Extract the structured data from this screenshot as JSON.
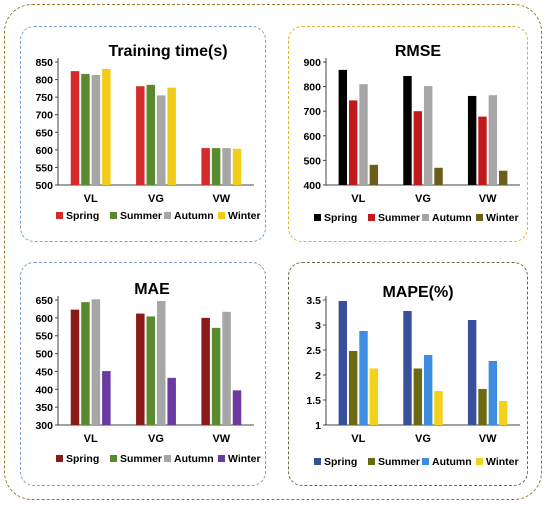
{
  "chart_data": [
    {
      "type": "bar",
      "title": "Training time(s)",
      "xlabel": "",
      "ylabel": "",
      "categories": [
        "VL",
        "VG",
        "VW"
      ],
      "ylim": [
        500,
        850
      ],
      "yticks": [
        500,
        550,
        600,
        650,
        700,
        750,
        800,
        850
      ],
      "legend_position": "bottom",
      "series": [
        {
          "name": "Spring",
          "color": "#d42a2a",
          "values": [
            824,
            781,
            605
          ]
        },
        {
          "name": "Summer",
          "color": "#5a8a2e",
          "values": [
            816,
            785,
            605
          ]
        },
        {
          "name": "Autumn",
          "color": "#a6a6a6",
          "values": [
            813,
            755,
            605
          ]
        },
        {
          "name": "Winter",
          "color": "#f2cc1a",
          "values": [
            830,
            777,
            603
          ]
        }
      ]
    },
    {
      "type": "bar",
      "title": "RMSE",
      "xlabel": "",
      "ylabel": "",
      "categories": [
        "VL",
        "VG",
        "VW"
      ],
      "ylim": [
        400,
        900
      ],
      "yticks": [
        400,
        500,
        600,
        700,
        800,
        900
      ],
      "legend_position": "bottom",
      "series": [
        {
          "name": "Spring",
          "color": "#000000",
          "values": [
            868,
            843,
            762
          ]
        },
        {
          "name": "Summer",
          "color": "#c01a1a",
          "values": [
            744,
            700,
            678
          ]
        },
        {
          "name": "Autumn",
          "color": "#a6a6a6",
          "values": [
            810,
            802,
            765
          ]
        },
        {
          "name": "Winter",
          "color": "#6b5e1a",
          "values": [
            482,
            470,
            458
          ]
        }
      ]
    },
    {
      "type": "bar",
      "title": "MAE",
      "xlabel": "",
      "ylabel": "",
      "categories": [
        "VL",
        "VG",
        "VW"
      ],
      "ylim": [
        300,
        650
      ],
      "yticks": [
        300,
        350,
        400,
        450,
        500,
        550,
        600,
        650
      ],
      "legend_position": "bottom",
      "series": [
        {
          "name": "Spring",
          "color": "#8b1a1a",
          "values": [
            623,
            612,
            600
          ]
        },
        {
          "name": "Summer",
          "color": "#5a8a2e",
          "values": [
            644,
            604,
            572
          ]
        },
        {
          "name": "Autumn",
          "color": "#a6a6a6",
          "values": [
            652,
            647,
            617
          ]
        },
        {
          "name": "Winter",
          "color": "#6a3aa0",
          "values": [
            451,
            432,
            397
          ]
        }
      ]
    },
    {
      "type": "bar",
      "title": "MAPE(%)",
      "xlabel": "",
      "ylabel": "",
      "categories": [
        "VL",
        "VG",
        "VW"
      ],
      "ylim": [
        1,
        3.5
      ],
      "yticks": [
        1,
        1.5,
        2,
        2.5,
        3,
        3.5
      ],
      "legend_position": "bottom",
      "series": [
        {
          "name": "Spring",
          "color": "#3a4f9c",
          "values": [
            3.48,
            3.28,
            3.1
          ]
        },
        {
          "name": "Summer",
          "color": "#6b6a12",
          "values": [
            2.48,
            2.13,
            1.72
          ]
        },
        {
          "name": "Autumn",
          "color": "#3f8de0",
          "values": [
            2.88,
            2.4,
            2.28
          ]
        },
        {
          "name": "Winter",
          "color": "#f2d21a",
          "values": [
            2.13,
            1.68,
            1.48
          ]
        }
      ]
    }
  ]
}
